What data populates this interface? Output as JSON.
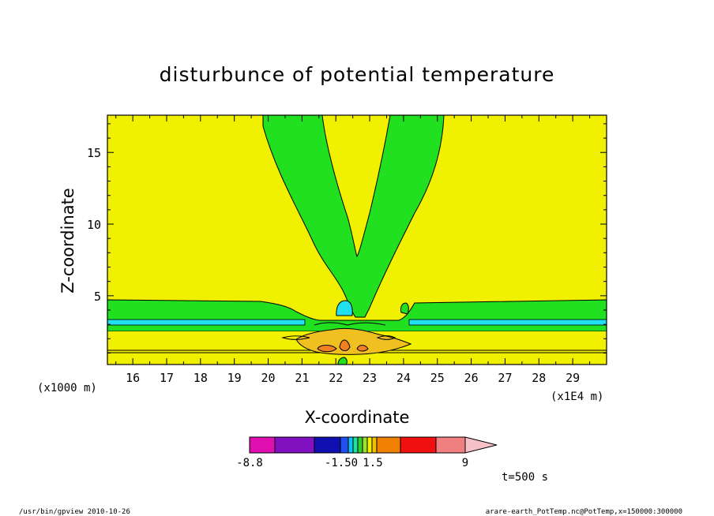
{
  "chart_data": {
    "type": "contour",
    "title": "disturbunce of potential temperature",
    "xlabel": "X-coordinate",
    "ylabel": "Z-coordinate",
    "x_unit_label": "(x1E4 m)",
    "y_unit_label": "(x1000 m)",
    "xlim": [
      15.25,
      30
    ],
    "ylim": [
      0.2,
      17.6
    ],
    "x_ticks": [
      16,
      17,
      18,
      19,
      20,
      21,
      22,
      23,
      24,
      25,
      26,
      27,
      28,
      29
    ],
    "y_ticks": [
      5,
      10,
      15
    ],
    "colorbar": {
      "colors": [
        "#e010b0",
        "#8010c0",
        "#1010b0",
        "#2050f0",
        "#10c0f0",
        "#20e0a0",
        "#30d030",
        "#a0e030",
        "#f0f000",
        "#f0c000",
        "#f08000",
        "#f01010",
        "#f08080",
        "#f8c0c8"
      ],
      "labels": [
        "-8.8",
        "-1.50",
        "1.5",
        "9"
      ]
    },
    "background_color": "#f0f000",
    "regions": {
      "green": "#20e020",
      "cyan": "#20e0f0",
      "orange": "#f0c020",
      "dark_orange": "#f08020",
      "lime": "#f0f000"
    },
    "time_label": "t=500 s"
  },
  "footer": {
    "left": "/usr/bin/gpview   2010-10-26",
    "right": "arare-earth_PotTemp.nc@PotTemp,x=150000:300000"
  }
}
